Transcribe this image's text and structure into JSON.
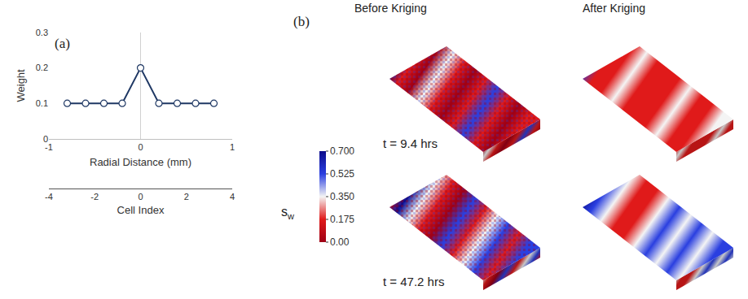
{
  "chart_data": [
    {
      "type": "line",
      "panel_label": "(a)",
      "x": [
        -0.8,
        -0.6,
        -0.4,
        -0.2,
        0,
        0.2,
        0.4,
        0.6,
        0.8
      ],
      "values": [
        0.1,
        0.1,
        0.1,
        0.1,
        0.2,
        0.1,
        0.1,
        0.1,
        0.1
      ],
      "xlabel": "Radial Distance (mm)",
      "ylabel": "Weight",
      "xlim": [
        -1,
        1
      ],
      "xticks": [
        -1,
        0,
        1
      ],
      "ylim": [
        0,
        0.3
      ],
      "yticks": [
        0,
        0.1,
        0.2,
        0.3
      ],
      "x2label": "Cell Index",
      "x2lim": [
        -4,
        4
      ],
      "x2ticks": [
        -4,
        -2,
        0,
        2,
        4
      ],
      "color": "#1f3864",
      "marker": "circle"
    },
    {
      "type": "image",
      "panel_label": "(b)",
      "columns": [
        "Before Kriging",
        "After Kriging"
      ],
      "rows": [
        "t = 9.4 hrs",
        "t = 47.2 hrs"
      ],
      "colorbar": {
        "symbol": "s",
        "subscript": "w",
        "range": [
          0,
          0.7
        ],
        "ticks": [
          {
            "value": 0.7,
            "label": "0.700"
          },
          0.525,
          {
            "value": 0.35,
            "label": "0.350"
          },
          0.175,
          {
            "value": 0,
            "label": "0.00"
          }
        ],
        "colors": [
          "#9e0016",
          "#e01a1a",
          "#f4f4f4",
          "#2a3fe0",
          "#0b0b8a"
        ]
      }
    }
  ]
}
